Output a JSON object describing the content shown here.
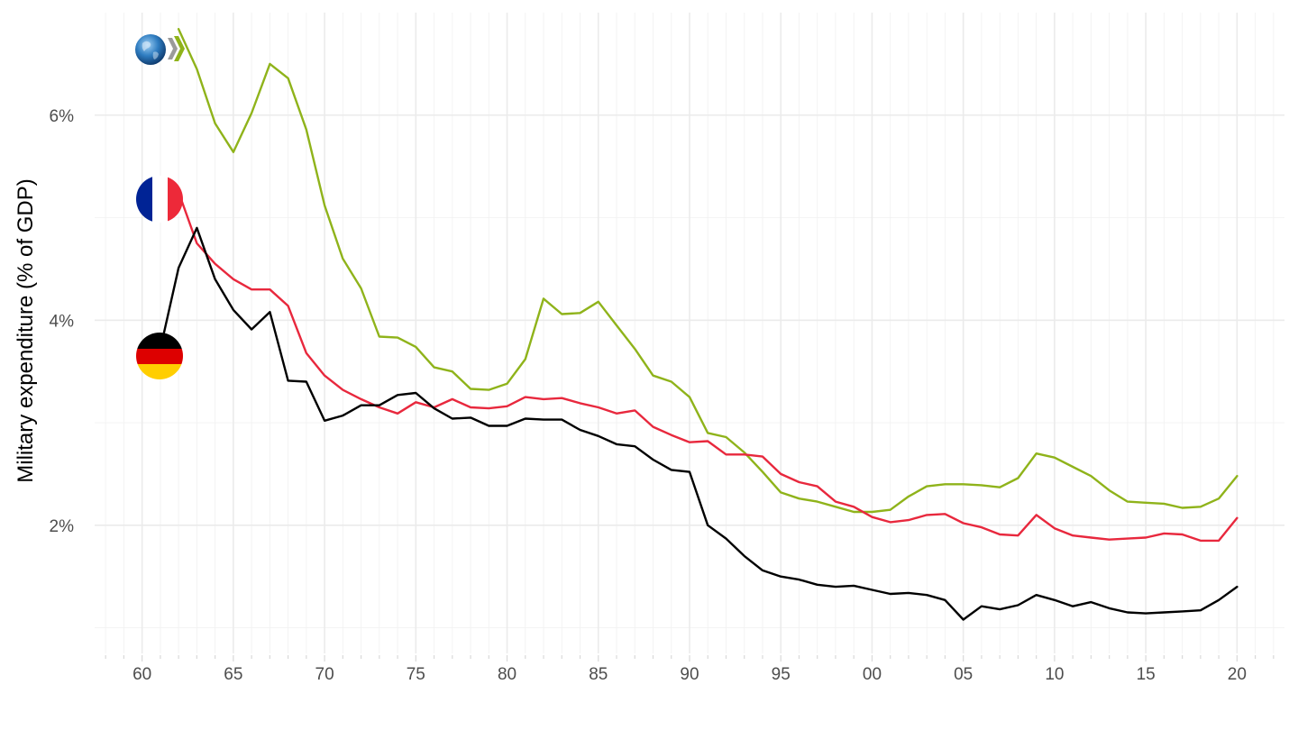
{
  "chart_data": {
    "type": "line",
    "title": "",
    "xlabel": "",
    "ylabel": "Military expenditure (% of GDP)",
    "xlim": [
      1957.4,
      1922.6
    ],
    "x_range": [
      1957.4,
      2022.6
    ],
    "y_range": [
      0.75,
      7.0
    ],
    "grid": true,
    "legend": "none",
    "x_ticks": [
      1960,
      1965,
      1970,
      1975,
      1980,
      1985,
      1990,
      1995,
      2000,
      2005,
      2010,
      2015,
      2020
    ],
    "x_tick_labels": [
      "60",
      "65",
      "70",
      "75",
      "80",
      "85",
      "90",
      "95",
      "00",
      "05",
      "10",
      "15",
      "20"
    ],
    "y_ticks": [
      2,
      4,
      6
    ],
    "y_tick_labels": [
      "2%",
      "4%",
      "6%"
    ],
    "series": [
      {
        "id": "oecd",
        "color": "#8fb31a",
        "icon": "oecd-logo-icon",
        "x": [
          1962,
          1963,
          1964,
          1965,
          1966,
          1967,
          1968,
          1969,
          1970,
          1971,
          1972,
          1973,
          1974,
          1975,
          1976,
          1977,
          1978,
          1979,
          1980,
          1981,
          1982,
          1983,
          1984,
          1985,
          1986,
          1987,
          1988,
          1989,
          1990,
          1991,
          1992,
          1993,
          1994,
          1995,
          1996,
          1997,
          1998,
          1999,
          2000,
          2001,
          2002,
          2003,
          2004,
          2005,
          2006,
          2007,
          2008,
          2009,
          2010,
          2011,
          2012,
          2013,
          2014,
          2015,
          2016,
          2017,
          2018,
          2019,
          2020
        ],
        "y": [
          6.84,
          6.45,
          5.92,
          5.64,
          6.02,
          6.5,
          6.36,
          5.86,
          5.12,
          4.6,
          4.31,
          3.84,
          3.83,
          3.74,
          3.54,
          3.5,
          3.33,
          3.32,
          3.38,
          3.62,
          4.21,
          4.06,
          4.07,
          4.18,
          3.95,
          3.72,
          3.46,
          3.4,
          3.25,
          2.9,
          2.86,
          2.71,
          2.52,
          2.32,
          2.26,
          2.23,
          2.18,
          2.13,
          2.13,
          2.15,
          2.28,
          2.38,
          2.4,
          2.4,
          2.39,
          2.37,
          2.46,
          2.7,
          2.66,
          2.57,
          2.48,
          2.34,
          2.23,
          2.22,
          2.21,
          2.17,
          2.18,
          2.26,
          2.48
        ]
      },
      {
        "id": "france",
        "color": "#e8283d",
        "icon": "france-flag-icon",
        "x": [
          1961,
          1962,
          1963,
          1964,
          1965,
          1966,
          1967,
          1968,
          1969,
          1970,
          1971,
          1972,
          1973,
          1974,
          1975,
          1976,
          1977,
          1978,
          1979,
          1980,
          1981,
          1982,
          1983,
          1984,
          1985,
          1986,
          1987,
          1988,
          1989,
          1990,
          1991,
          1992,
          1993,
          1994,
          1995,
          1996,
          1997,
          1998,
          1999,
          2000,
          2001,
          2002,
          2003,
          2004,
          2005,
          2006,
          2007,
          2008,
          2009,
          2010,
          2011,
          2012,
          2013,
          2014,
          2015,
          2016,
          2017,
          2018,
          2019,
          2020
        ],
        "y": [
          5.3,
          5.25,
          4.75,
          4.55,
          4.4,
          4.3,
          4.3,
          4.14,
          3.68,
          3.46,
          3.32,
          3.23,
          3.15,
          3.09,
          3.2,
          3.15,
          3.23,
          3.15,
          3.14,
          3.16,
          3.25,
          3.23,
          3.24,
          3.19,
          3.15,
          3.09,
          3.12,
          2.96,
          2.88,
          2.81,
          2.82,
          2.69,
          2.69,
          2.67,
          2.5,
          2.42,
          2.38,
          2.23,
          2.18,
          2.08,
          2.03,
          2.05,
          2.1,
          2.11,
          2.02,
          1.98,
          1.91,
          1.9,
          2.1,
          1.97,
          1.9,
          1.88,
          1.86,
          1.87,
          1.88,
          1.92,
          1.91,
          1.85,
          1.85,
          2.07
        ]
      },
      {
        "id": "germany",
        "color": "#000000",
        "icon": "germany-flag-icon",
        "x": [
          1961,
          1962,
          1963,
          1964,
          1965,
          1966,
          1967,
          1968,
          1969,
          1970,
          1971,
          1972,
          1973,
          1974,
          1975,
          1976,
          1977,
          1978,
          1979,
          1980,
          1981,
          1982,
          1983,
          1984,
          1985,
          1986,
          1987,
          1988,
          1989,
          1990,
          1991,
          1992,
          1993,
          1994,
          1995,
          1996,
          1997,
          1998,
          1999,
          2000,
          2001,
          2002,
          2003,
          2004,
          2005,
          2006,
          2007,
          2008,
          2009,
          2010,
          2011,
          2012,
          2013,
          2014,
          2015,
          2016,
          2017,
          2018,
          2019,
          2020
        ],
        "y": [
          3.72,
          4.51,
          4.9,
          4.4,
          4.1,
          3.91,
          4.08,
          3.41,
          3.4,
          3.02,
          3.07,
          3.17,
          3.17,
          3.27,
          3.29,
          3.14,
          3.04,
          3.05,
          2.97,
          2.97,
          3.04,
          3.03,
          3.03,
          2.93,
          2.87,
          2.79,
          2.77,
          2.64,
          2.54,
          2.52,
          2.0,
          1.87,
          1.7,
          1.56,
          1.5,
          1.47,
          1.42,
          1.4,
          1.41,
          1.37,
          1.33,
          1.34,
          1.32,
          1.27,
          1.08,
          1.21,
          1.18,
          1.22,
          1.32,
          1.27,
          1.21,
          1.25,
          1.19,
          1.15,
          1.14,
          1.15,
          1.16,
          1.17,
          1.27,
          1.4
        ]
      }
    ]
  }
}
